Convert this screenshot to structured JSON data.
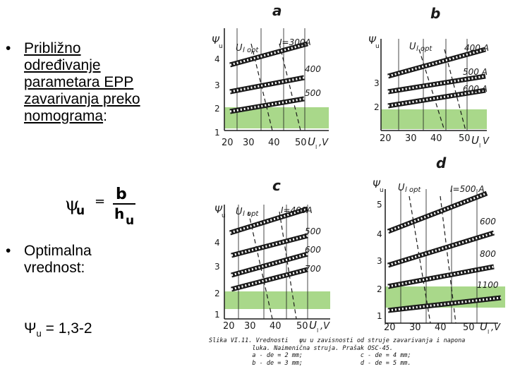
{
  "bullets": [
    {
      "lines": [
        "Približno",
        "određivanje",
        "parametara EPP",
        "zavarivanja preko",
        "nomograma"
      ],
      "tail": ":"
    },
    {
      "lines": [
        "Optimalna",
        "vrednost:"
      ]
    }
  ],
  "optimum": {
    "symbol": "Ψ",
    "sub": "u",
    "text": " = 1,3-2"
  },
  "formula": {
    "lhs": "ψ",
    "lhs_sub": "u",
    "eq": "=",
    "num": "b",
    "den": "h",
    "den_sub": "u"
  },
  "panels": {
    "a": {
      "label": "a",
      "y_label": "Ψ",
      "y_sub": "u",
      "y_ticks": [
        "4",
        "3",
        "2",
        "1"
      ],
      "x_ticks": [
        "20",
        "30",
        "40",
        "50"
      ],
      "x_unit": "U",
      "x_unit_sub": "l",
      "x_unit_tail": ",V",
      "opt_label": "U",
      "opt_sub": "l opt",
      "curves": [
        "I=300A",
        "400",
        "500"
      ]
    },
    "b": {
      "label": "b",
      "y_label": "Ψ",
      "y_sub": "u",
      "y_ticks": [
        "3",
        "2"
      ],
      "x_ticks": [
        "20",
        "30",
        "40",
        "50"
      ],
      "x_unit": "U",
      "x_unit_sub": "l",
      "x_unit_tail": "V",
      "opt_label": "U",
      "opt_sub": "l opt",
      "curves": [
        "400 A",
        "500 A",
        "600 A"
      ]
    },
    "c": {
      "label": "c",
      "y_label": "Ψ",
      "y_sub": "u",
      "y_ticks": [
        "4",
        "3",
        "2",
        "1"
      ],
      "x_ticks": [
        "20",
        "30",
        "40",
        "50"
      ],
      "x_unit": "U",
      "x_unit_sub": "l",
      "x_unit_tail": ",V",
      "opt_label": "U",
      "opt_sub": "l opt",
      "curves": [
        "I=400A",
        "500",
        "600",
        "700"
      ]
    },
    "d": {
      "label": "d",
      "y_label": "Ψ",
      "y_sub": "u",
      "y_ticks": [
        "5",
        "4",
        "3",
        "2",
        "1"
      ],
      "x_ticks": [
        "20",
        "30",
        "40",
        "50"
      ],
      "x_unit": "U",
      "x_unit_sub": "l",
      "x_unit_tail": ",V",
      "opt_label": "U",
      "opt_sub": "l opt",
      "curves": [
        "I=500 A",
        "600",
        "800",
        "1100"
      ]
    }
  },
  "caption": {
    "line1": "Slika VI.11. Vrednosti   ψu u zavisnosti od struje zavarivanja i napona",
    "line2": "            luka. Naimenična struja. Prašak OSC-45.",
    "line3": "            a - de = 2 mm;                c - de = 4 mm;",
    "line4": "            b - de = 3 mm;                d - de = 5 mm."
  },
  "colors": {
    "highlight": "#a9d88a",
    "ink": "#1a1a1a"
  }
}
